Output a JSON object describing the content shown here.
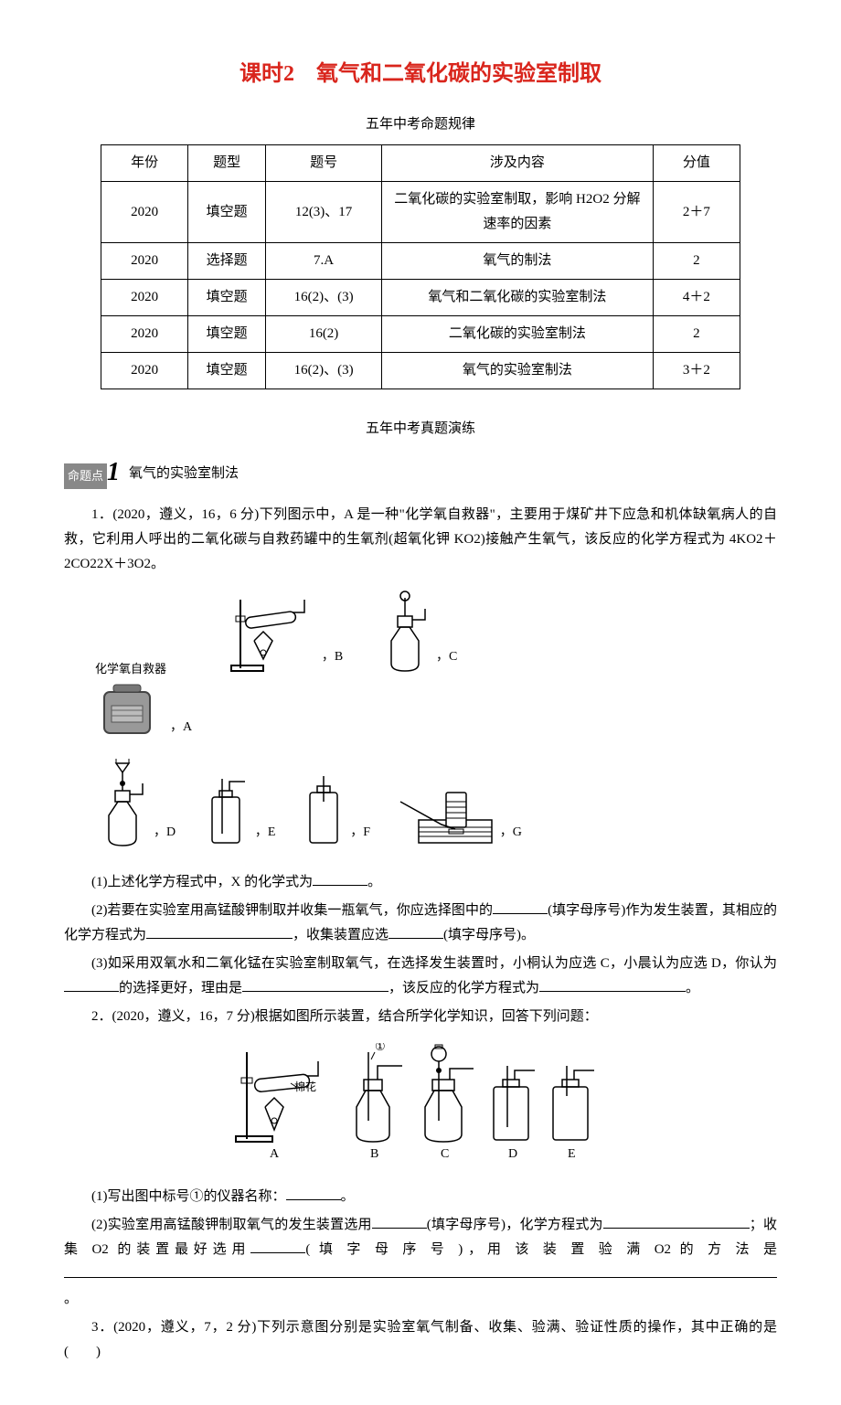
{
  "title": "课时2　氧气和二氧化碳的实验室制取",
  "table_caption": "五年中考命题规律",
  "table": {
    "columns": [
      "年份",
      "题型",
      "题号",
      "涉及内容",
      "分值"
    ],
    "rows": [
      [
        "2020",
        "填空题",
        "12(3)、17",
        "二氧化碳的实验室制取，影响 H2O2 分解速率的因素",
        "2＋7"
      ],
      [
        "2020",
        "选择题",
        "7.A",
        "氧气的制法",
        "2"
      ],
      [
        "2020",
        "填空题",
        "16(2)、(3)",
        "氧气和二氧化碳的实验室制法",
        "4＋2"
      ],
      [
        "2020",
        "填空题",
        "16(2)",
        "二氧化碳的实验室制法",
        "2"
      ],
      [
        "2020",
        "填空题",
        "16(2)、(3)",
        "氧气的实验室制法",
        "3＋2"
      ]
    ],
    "col_widths": [
      "90px",
      "80px",
      "120px",
      "280px",
      "90px"
    ]
  },
  "practice_caption": "五年中考真题演练",
  "topic1": {
    "badge": "命题点",
    "num": "1",
    "title": "氧气的实验室制法"
  },
  "q1": {
    "text": "1．(2020，遵义，16，6 分)下列图示中，A 是一种\"化学氧自救器\"，主要用于煤矿井下应急和机体缺氧病人的自救，它利用人呼出的二氧化碳与自救药罐中的生氧剂(超氧化钾 KO2)接触产生氧气，该反应的化学方程式为 4KO2＋2CO22X＋3O2。",
    "img_caption": "化学氧自救器",
    "labels": {
      "A": "A",
      "B": "B",
      "C": "C",
      "D": "D",
      "E": "E",
      "F": "F",
      "G": "G"
    },
    "p1": "(1)上述化学方程式中，X 的化学式为",
    "p1_end": "。",
    "p2_a": "(2)若要在实验室用高锰酸钾制取并收集一瓶氧气，你应选择图中的",
    "p2_b": "(填字母序号)作为发生装置，其相应的化学方程式为",
    "p2_c": "，收集装置应选",
    "p2_d": "(填字母序号)。",
    "p3_a": "(3)如采用双氧水和二氧化锰在实验室制取氧气，在选择发生装置时，小桐认为应选 C，小晨认为应选 D，你认为",
    "p3_b": "的选择更好，理由是",
    "p3_c": "，该反应的化学方程式为",
    "p3_d": "。"
  },
  "q2": {
    "text": "2．(2020，遵义，16，7 分)根据如图所示装置，结合所学化学知识，回答下列问题：",
    "label_circ": "①",
    "label_mian": "棉花",
    "labels": {
      "A": "A",
      "B": "B",
      "C": "C",
      "D": "D",
      "E": "E"
    },
    "p1": "(1)写出图中标号①的仪器名称：",
    "p1_end": "。",
    "p2_a": "(2)实验室用高锰酸钾制取氧气的发生装置选用",
    "p2_b": "(填字母序号)，化学方程式为",
    "p2_c": "；收集 O2 的装置最好选用",
    "p2_d": "( 填 字 母 序 号 )，用 该 装 置 验 满 O2 的 方 法 是",
    "p2_e": "。"
  },
  "q3": {
    "text_a": "3．(2020，遵义，7，2 分)下列示意图分别是实验室氧气制备、收集、验满、验证性质的操作，其中正确的是(",
    "text_b": ")"
  },
  "colors": {
    "title": "#d9251c",
    "text": "#000000",
    "badge_bg": "#888888",
    "border": "#000000"
  }
}
